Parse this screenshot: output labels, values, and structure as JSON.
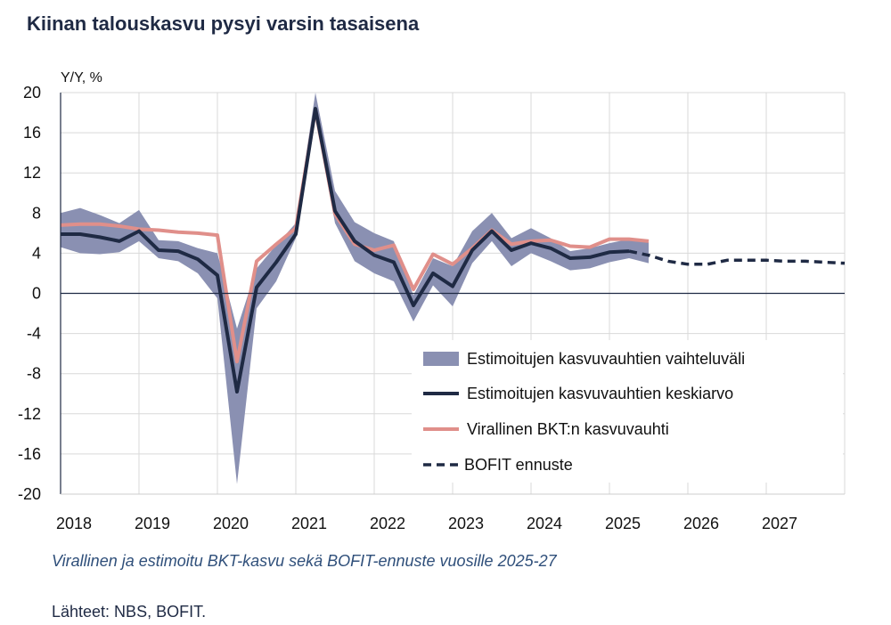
{
  "title": "Kiinan talouskasvu pysyi varsin tasaisena",
  "caption": "Virallinen ja estimoitu BKT-kasvu sekä BOFIT-ennuste vuosille 2025-27",
  "source": "Lähteet: NBS, BOFIT.",
  "colors": {
    "band": "#8a90b2",
    "mean": "#1f2a44",
    "official": "#e08f8a",
    "forecast": "#1f2a44",
    "grid": "#d9d9d9"
  },
  "chart_data": {
    "type": "line",
    "ylabel": "Y/Y, %",
    "ylim": [
      -20,
      20
    ],
    "yticks": [
      20,
      16,
      12,
      8,
      4,
      0,
      -4,
      -8,
      -12,
      -16,
      -20
    ],
    "xlim": [
      2018.0,
      2028.0
    ],
    "xticks": [
      2018,
      2019,
      2020,
      2021,
      2022,
      2023,
      2024,
      2025,
      2026,
      2027
    ],
    "grid": true,
    "legend_position": "bottom-right",
    "x": [
      2018.0,
      2018.25,
      2018.5,
      2018.75,
      2019.0,
      2019.25,
      2019.5,
      2019.75,
      2020.0,
      2020.25,
      2020.5,
      2020.75,
      2021.0,
      2021.25,
      2021.5,
      2021.75,
      2022.0,
      2022.25,
      2022.5,
      2022.75,
      2023.0,
      2023.25,
      2023.5,
      2023.75,
      2024.0,
      2024.25,
      2024.5,
      2024.75,
      2025.0,
      2025.25,
      2025.5
    ],
    "series": [
      {
        "name": "Estimoitujen kasvuvauhtien vaihteluväli",
        "kind": "band",
        "low": [
          4.6,
          4.0,
          3.9,
          4.1,
          5.2,
          3.5,
          3.2,
          2.0,
          -0.5,
          -19.0,
          -1.5,
          1.2,
          5.5,
          17.5,
          7.0,
          3.2,
          2.0,
          1.2,
          -2.8,
          0.8,
          -1.3,
          3.0,
          5.2,
          2.7,
          4.0,
          3.2,
          2.3,
          2.5,
          3.1,
          3.5,
          3.0
        ],
        "high": [
          8.0,
          8.5,
          7.8,
          7.0,
          8.3,
          5.3,
          5.2,
          4.5,
          4.0,
          -3.5,
          2.5,
          4.8,
          7.0,
          20.0,
          10.2,
          7.1,
          6.0,
          5.2,
          -0.2,
          3.5,
          2.7,
          6.2,
          8.0,
          5.5,
          6.5,
          5.5,
          4.2,
          4.5,
          5.0,
          5.4,
          5.1
        ]
      },
      {
        "name": "Estimoitujen kasvuvauhtien keskiarvo",
        "kind": "line",
        "values": [
          5.9,
          5.9,
          5.6,
          5.2,
          6.2,
          4.3,
          4.2,
          3.4,
          1.8,
          -9.8,
          0.6,
          3.1,
          5.9,
          18.4,
          8.2,
          5.2,
          3.8,
          3.1,
          -1.2,
          2.0,
          0.7,
          4.3,
          6.2,
          4.3,
          5.0,
          4.5,
          3.5,
          3.6,
          4.1,
          4.2,
          null
        ]
      },
      {
        "name": "Virallinen BKT:n kasvuvauhti",
        "kind": "line",
        "values": [
          6.8,
          6.9,
          6.9,
          6.7,
          6.4,
          6.3,
          6.1,
          6.0,
          5.8,
          -6.8,
          3.2,
          4.9,
          6.5,
          18.3,
          7.9,
          4.9,
          4.3,
          4.8,
          0.4,
          3.9,
          2.9,
          4.5,
          6.3,
          4.9,
          5.2,
          5.3,
          4.7,
          4.6,
          5.4,
          5.4,
          5.2
        ]
      },
      {
        "name": "BOFIT ennuste",
        "kind": "dashed",
        "x": [
          2025.25,
          2025.5,
          2025.75,
          2026.0,
          2026.25,
          2026.5,
          2026.75,
          2027.0,
          2027.25,
          2027.5,
          2027.75,
          2028.0
        ],
        "values": [
          4.2,
          3.8,
          3.2,
          2.9,
          2.9,
          3.3,
          3.3,
          3.3,
          3.2,
          3.2,
          3.1,
          3.0
        ]
      }
    ]
  }
}
